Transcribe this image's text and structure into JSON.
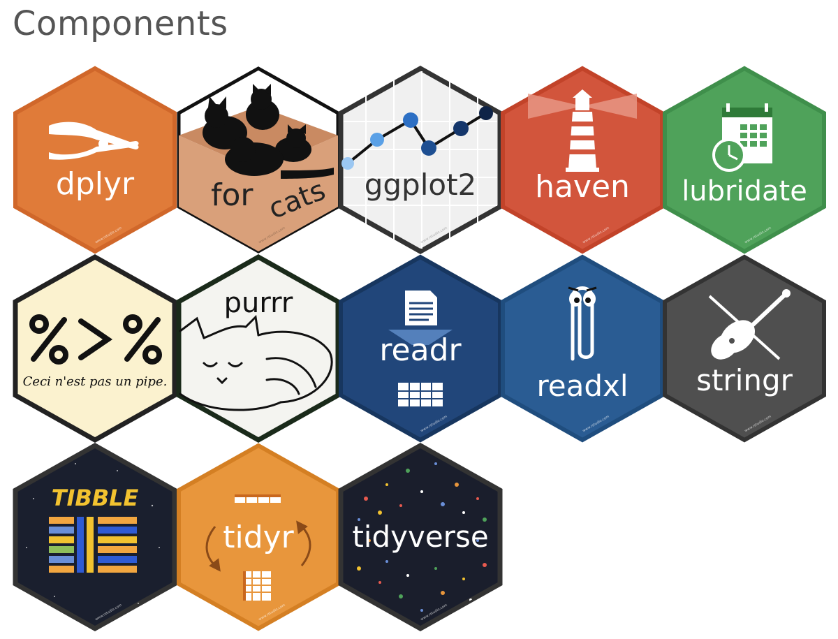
{
  "page": {
    "title": "Components"
  },
  "watermark": "www.rstudio.com",
  "hexes": [
    {
      "id": "dplyr",
      "label": "dplyr",
      "fill": "#e07b39",
      "border": "#d0672a",
      "text_color": "#ffffff"
    },
    {
      "id": "forcats",
      "label_pre": "for",
      "label_post": "cats",
      "fill": "#d9a07a",
      "border": "#111111",
      "text_color": "#222222"
    },
    {
      "id": "ggplot2",
      "label": "ggplot2",
      "fill": "#f0f0f0",
      "border": "#333333",
      "text_color": "#333333"
    },
    {
      "id": "haven",
      "label": "haven",
      "fill": "#d2553c",
      "border": "#c24329",
      "text_color": "#ffffff"
    },
    {
      "id": "lubridate",
      "label": "lubridate",
      "fill": "#4fa25a",
      "border": "#3f8f4b",
      "text_color": "#ffffff"
    },
    {
      "id": "magrittr",
      "caption": "Ceci n'est pas un pipe.",
      "fill": "#fbf2cf",
      "border": "#222222",
      "text_color": "#111111"
    },
    {
      "id": "purrr",
      "label": "purrr",
      "fill": "#f4f4f0",
      "border": "#1a2a1a",
      "text_color": "#111111"
    },
    {
      "id": "readr",
      "label": "readr",
      "fill": "#21467a",
      "border": "#17365f",
      "text_color": "#ffffff"
    },
    {
      "id": "readxl",
      "label": "readxl",
      "fill": "#2a5c93",
      "border": "#1f4d7e",
      "text_color": "#ffffff"
    },
    {
      "id": "stringr",
      "label": "stringr",
      "fill": "#4f4f4f",
      "border": "#333333",
      "text_color": "#ffffff"
    },
    {
      "id": "tibble",
      "label": "TIBBLE",
      "fill": "#1a1f2e",
      "border": "#333333",
      "text_color": "#f2c230"
    },
    {
      "id": "tidyr",
      "label": "tidyr",
      "fill": "#e8963c",
      "border": "#d47f23",
      "text_color": "#ffffff"
    },
    {
      "id": "tidyverse",
      "label": "tidyverse",
      "fill": "#1a1e2c",
      "border": "#333333",
      "text_color": "#ffffff"
    }
  ]
}
